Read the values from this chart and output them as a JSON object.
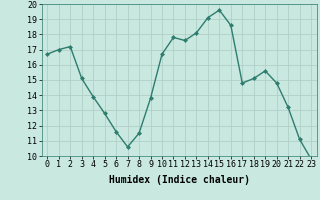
{
  "x": [
    0,
    1,
    2,
    3,
    4,
    5,
    6,
    7,
    8,
    9,
    10,
    11,
    12,
    13,
    14,
    15,
    16,
    17,
    18,
    19,
    20,
    21,
    22,
    23
  ],
  "y": [
    16.7,
    17.0,
    17.2,
    15.1,
    13.9,
    12.8,
    11.6,
    10.6,
    11.5,
    13.8,
    16.7,
    17.8,
    17.6,
    18.1,
    19.1,
    19.6,
    18.6,
    14.8,
    15.1,
    15.6,
    14.8,
    13.2,
    11.1,
    9.8
  ],
  "line_color": "#2e7d6e",
  "marker": "D",
  "marker_size": 2.0,
  "bg_color": "#c8e8e0",
  "grid_color": "#b0cfc8",
  "xlabel": "Humidex (Indice chaleur)",
  "xlabel_fontsize": 7,
  "ylim": [
    10,
    20
  ],
  "xlim": [
    -0.5,
    23.5
  ],
  "yticks": [
    10,
    11,
    12,
    13,
    14,
    15,
    16,
    17,
    18,
    19,
    20
  ],
  "xticks": [
    0,
    1,
    2,
    3,
    4,
    5,
    6,
    7,
    8,
    9,
    10,
    11,
    12,
    13,
    14,
    15,
    16,
    17,
    18,
    19,
    20,
    21,
    22,
    23
  ],
  "tick_fontsize": 6,
  "line_width": 1.0
}
